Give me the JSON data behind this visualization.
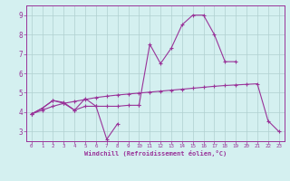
{
  "xlabel": "Windchill (Refroidissement éolien,°C)",
  "x": [
    0,
    1,
    2,
    3,
    4,
    5,
    6,
    7,
    8,
    9,
    10,
    11,
    12,
    13,
    14,
    15,
    16,
    17,
    18,
    19,
    20,
    21,
    22,
    23
  ],
  "line1": [
    3.9,
    4.2,
    4.6,
    4.5,
    4.1,
    4.7,
    4.3,
    2.6,
    3.4,
    null,
    4.35,
    7.5,
    6.5,
    7.3,
    8.5,
    9.0,
    9.0,
    8.0,
    6.6,
    6.6,
    null,
    null,
    null,
    null
  ],
  "line2": [
    3.9,
    4.2,
    4.6,
    4.45,
    4.1,
    4.3,
    4.3,
    4.3,
    4.3,
    4.35,
    4.35,
    null,
    null,
    null,
    null,
    null,
    null,
    null,
    null,
    null,
    null,
    null,
    null,
    null
  ],
  "line3": [
    3.9,
    4.1,
    4.3,
    4.45,
    4.55,
    4.65,
    4.75,
    4.82,
    4.88,
    4.93,
    4.98,
    5.03,
    5.08,
    5.13,
    5.18,
    5.23,
    5.28,
    5.33,
    5.37,
    5.4,
    5.43,
    5.46,
    3.55,
    3.0
  ],
  "line_color": "#993399",
  "bg_color": "#d4f0f0",
  "grid_color": "#b0d0d0",
  "ylim": [
    2.5,
    9.5
  ],
  "xlim": [
    -0.5,
    23.5
  ],
  "yticks": [
    3,
    4,
    5,
    6,
    7,
    8,
    9
  ],
  "xticks": [
    0,
    1,
    2,
    3,
    4,
    5,
    6,
    7,
    8,
    9,
    10,
    11,
    12,
    13,
    14,
    15,
    16,
    17,
    18,
    19,
    20,
    21,
    22,
    23
  ]
}
